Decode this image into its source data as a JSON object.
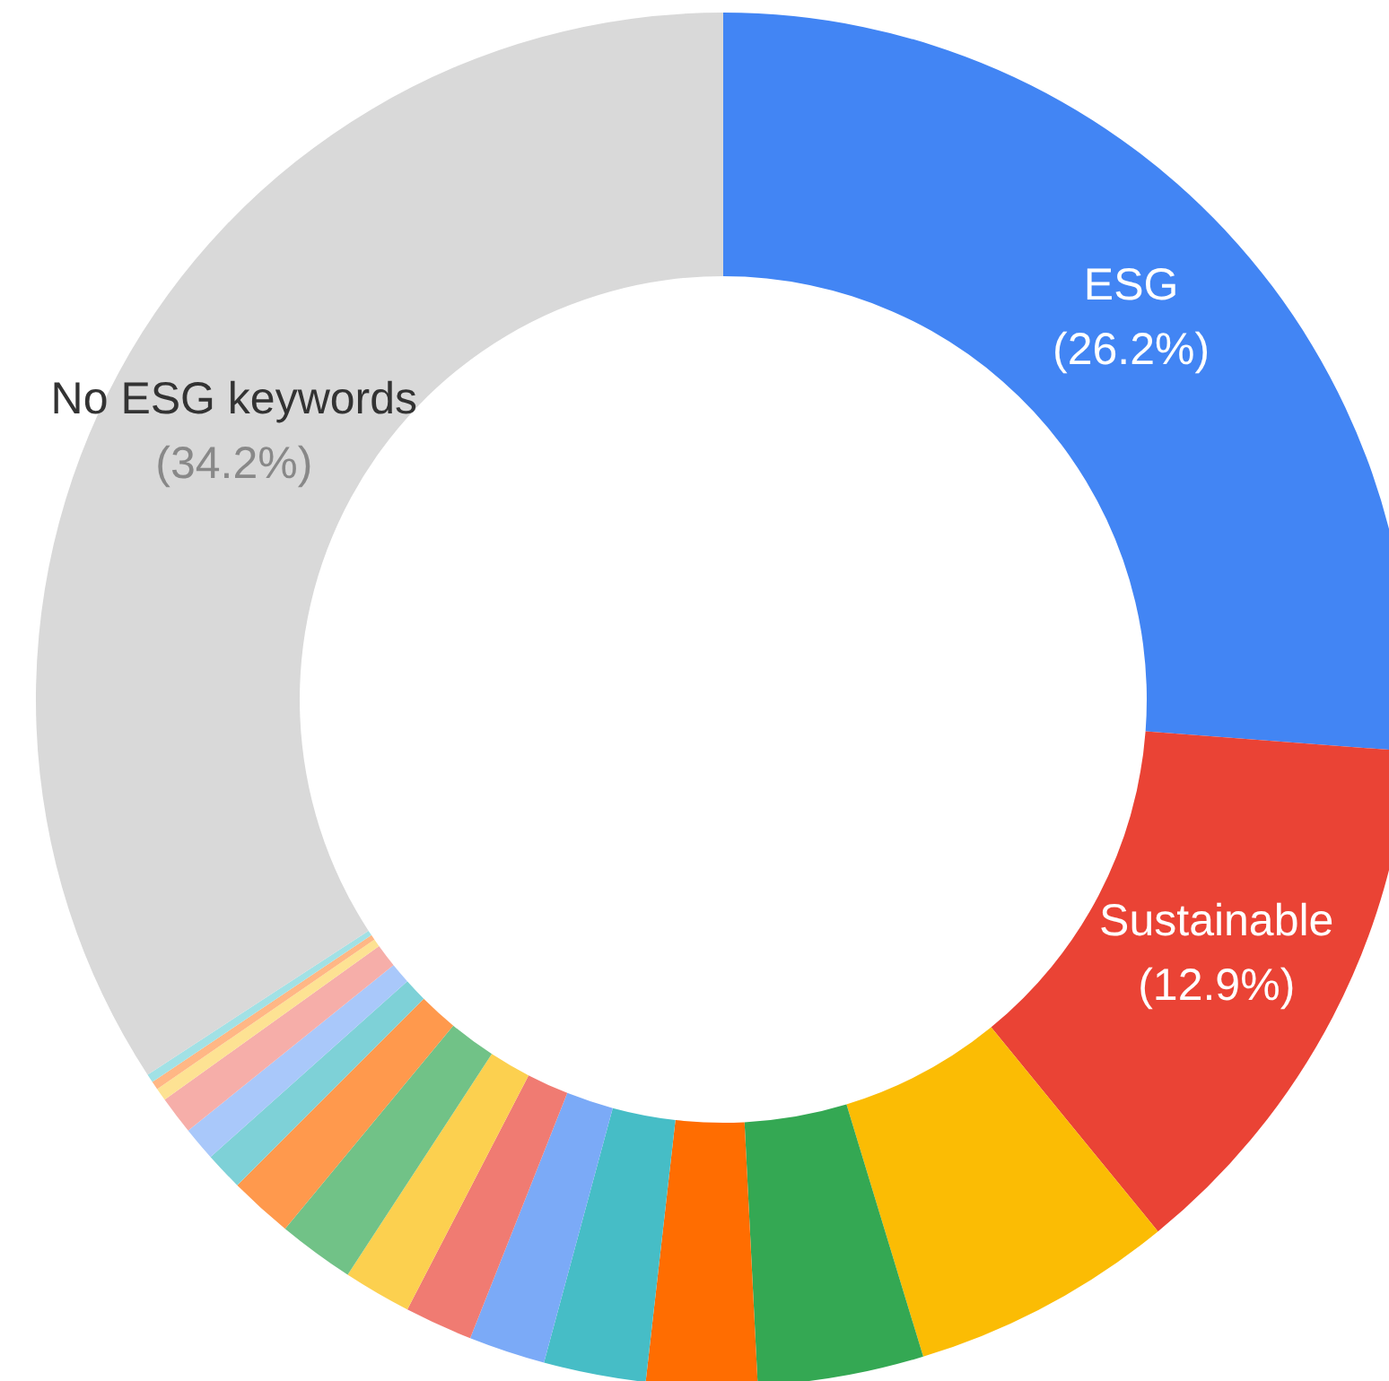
{
  "chart_data": {
    "type": "donut",
    "categories": [
      "ESG",
      "Sustainable",
      null,
      null,
      null,
      null,
      null,
      null,
      null,
      null,
      null,
      null,
      null,
      null,
      null,
      null,
      null,
      "No ESG keywords"
    ],
    "values": [
      26.2,
      12.9,
      6.2,
      3.9,
      2.6,
      2.4,
      1.8,
      1.6,
      1.6,
      1.8,
      1.5,
      0.9,
      0.8,
      0.9,
      0.3,
      0.2,
      0.2,
      34.2
    ],
    "colors": [
      "#4285f4",
      "#ea4335",
      "#fbbc04",
      "#34a853",
      "#ff6d01",
      "#46bdc6",
      "#7baaf7",
      "#f07b72",
      "#fcd04f",
      "#71c287",
      "#ff994d",
      "#7ed1d7",
      "#a9c8fa",
      "#f6aea9",
      "#fde293",
      "#ffb785",
      "#a1e1e5",
      "#d9d9d9"
    ],
    "value_labels": [
      "(26.2%)",
      "(12.9%)",
      null,
      null,
      null,
      null,
      null,
      null,
      null,
      null,
      null,
      null,
      null,
      null,
      null,
      null,
      null,
      "(34.2%)"
    ]
  }
}
